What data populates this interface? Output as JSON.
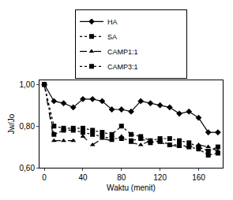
{
  "chart_data": {
    "type": "line",
    "x_label": "Waktu (menit)",
    "y_label": "Jw/Jo",
    "x": [
      0,
      10,
      20,
      30,
      40,
      50,
      60,
      70,
      80,
      90,
      100,
      110,
      120,
      130,
      140,
      150,
      160,
      170,
      180
    ],
    "series": [
      {
        "name": "HA",
        "color": "#000000",
        "marker": "diamond",
        "line_style": "solid",
        "values": [
          1.0,
          0.92,
          0.91,
          0.89,
          0.93,
          0.93,
          0.92,
          0.88,
          0.88,
          0.87,
          0.92,
          0.91,
          0.9,
          0.89,
          0.86,
          0.87,
          0.84,
          0.77,
          0.77
        ]
      },
      {
        "name": "SA",
        "color": "#000000",
        "marker": "square",
        "line_style": "dot",
        "values": [
          1.0,
          0.8,
          0.79,
          0.79,
          0.79,
          0.78,
          0.77,
          0.76,
          0.8,
          0.76,
          0.75,
          0.73,
          0.74,
          0.74,
          0.73,
          0.72,
          0.7,
          0.68,
          0.7
        ]
      },
      {
        "name": "CAMP1:1",
        "color": "#000000",
        "marker": "triangle-up",
        "line_style": "dash",
        "values": [
          1.0,
          0.73,
          0.73,
          0.73,
          0.75,
          0.71,
          0.74,
          0.73,
          0.75,
          0.72,
          0.71,
          0.73,
          0.72,
          0.71,
          0.7,
          0.7,
          0.71,
          0.7,
          0.68
        ]
      },
      {
        "name": "CAMP3:1",
        "color": "#000000",
        "marker": "square",
        "line_style": "dot",
        "values": [
          1.0,
          0.76,
          0.78,
          0.78,
          0.77,
          0.76,
          0.75,
          0.74,
          0.74,
          0.73,
          0.74,
          0.72,
          0.73,
          0.71,
          0.71,
          0.7,
          0.69,
          0.66,
          0.67
        ]
      }
    ],
    "xlim": [
      -5,
      185
    ],
    "xticks": [
      0,
      40,
      80,
      120,
      160
    ],
    "ylim": [
      0.6,
      1.02
    ],
    "yticks": [
      {
        "value": 0.6,
        "label": "0,60"
      },
      {
        "value": 0.8,
        "label": "0,80"
      },
      {
        "value": 1.0,
        "label": "1,00"
      }
    ],
    "grid": false,
    "legend": "top"
  }
}
